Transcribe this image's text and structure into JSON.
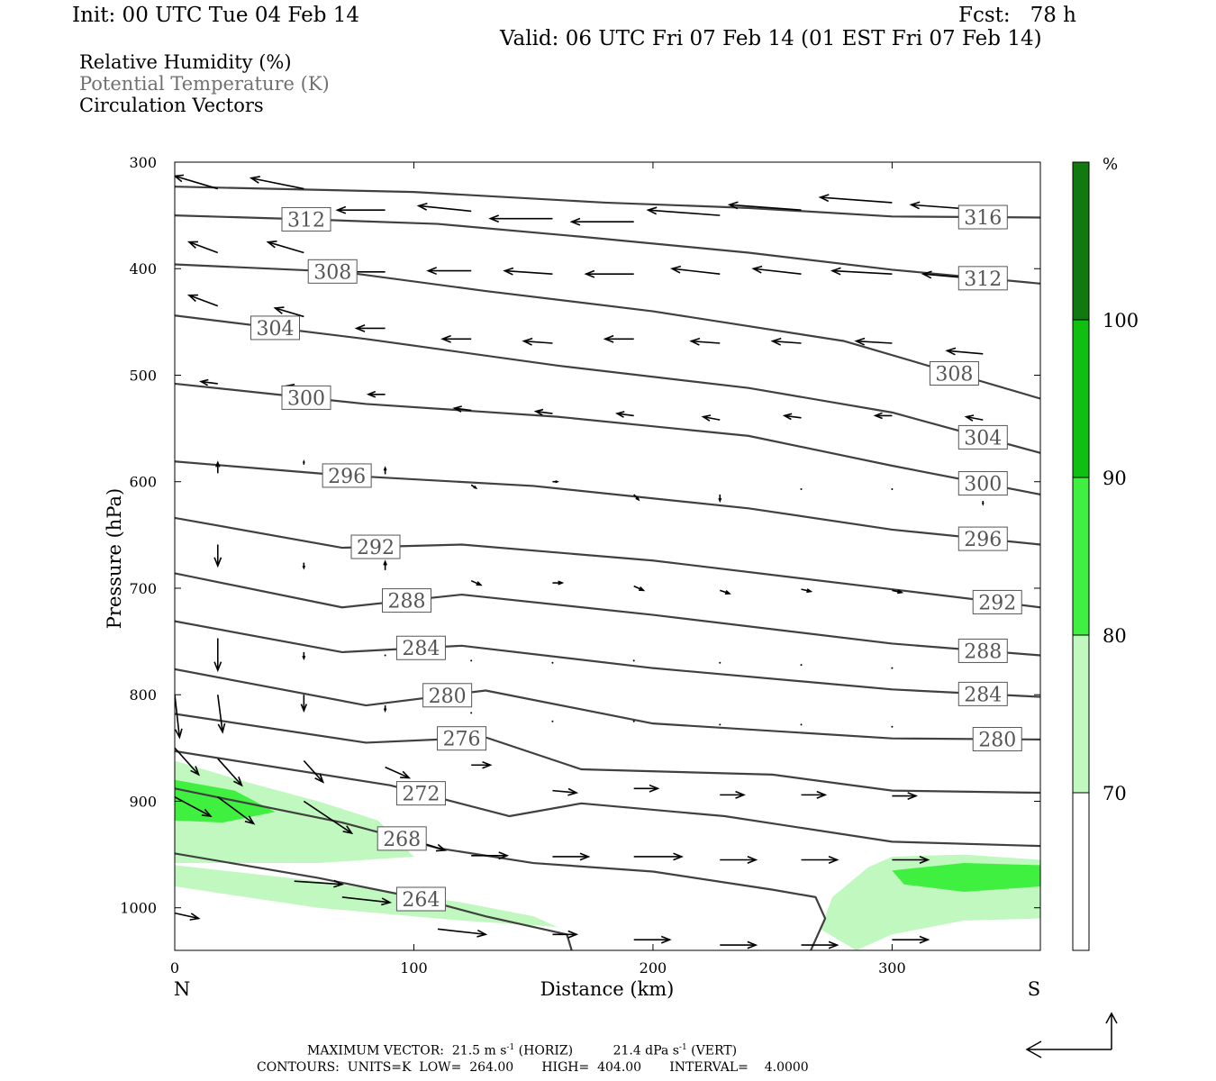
{
  "header": {
    "init": "Init: 00 UTC Tue 04 Feb 14",
    "fcst": "Fcst:   78 h",
    "valid": "Valid: 06 UTC Fri 07 Feb 14 (01 EST Fri 07 Feb 14)"
  },
  "legend": {
    "rh": "Relative Humidity (%)",
    "theta": "Potential Temperature (K)",
    "vectors": "Circulation Vectors"
  },
  "colors": {
    "contour": "#404040",
    "rh70": "#c0f8c0",
    "rh80": "#40f040",
    "rh90": "#10c010",
    "rh100": "#107a10",
    "theta_label_text": "#555555"
  },
  "chart_data": {
    "type": "cross-section",
    "xlabel": "Distance (km)",
    "ylabel": "Pressure (hPa)",
    "xlim": [
      0,
      362
    ],
    "ylim": [
      1040,
      300
    ],
    "x_ticks": [
      0,
      100,
      200,
      300
    ],
    "y_ticks": [
      300,
      400,
      500,
      600,
      700,
      800,
      900,
      1000
    ],
    "end_labels": {
      "left": "N",
      "right": "S"
    },
    "colorbar": {
      "unit": "%",
      "levels": [
        70,
        80,
        90,
        100
      ]
    },
    "isentropes": [
      {
        "theta": 316,
        "points": [
          [
            0,
            323
          ],
          [
            100,
            328
          ],
          [
            180,
            338
          ],
          [
            240,
            343
          ],
          [
            300,
            351
          ],
          [
            362,
            352
          ]
        ],
        "label_x": [
          338
        ]
      },
      {
        "theta": 312,
        "points": [
          [
            0,
            350
          ],
          [
            60,
            354
          ],
          [
            110,
            358
          ],
          [
            170,
            370
          ],
          [
            240,
            385
          ],
          [
            300,
            401
          ],
          [
            362,
            414
          ]
        ],
        "label_x": [
          55,
          338
        ]
      },
      {
        "theta": 308,
        "points": [
          [
            0,
            396
          ],
          [
            70,
            403
          ],
          [
            130,
            421
          ],
          [
            200,
            440
          ],
          [
            280,
            468
          ],
          [
            362,
            522
          ]
        ],
        "label_x": [
          66,
          326
        ]
      },
      {
        "theta": 304,
        "points": [
          [
            0,
            444
          ],
          [
            80,
            466
          ],
          [
            160,
            491
          ],
          [
            240,
            512
          ],
          [
            300,
            535
          ],
          [
            362,
            573
          ]
        ],
        "label_x": [
          42,
          338
        ]
      },
      {
        "theta": 300,
        "points": [
          [
            0,
            508
          ],
          [
            80,
            527
          ],
          [
            160,
            539
          ],
          [
            240,
            557
          ],
          [
            300,
            585
          ],
          [
            362,
            612
          ]
        ],
        "label_x": [
          55,
          338
        ]
      },
      {
        "theta": 296,
        "points": [
          [
            0,
            581
          ],
          [
            70,
            594
          ],
          [
            150,
            604
          ],
          [
            240,
            625
          ],
          [
            300,
            645
          ],
          [
            362,
            659
          ]
        ],
        "label_x": [
          72,
          338
        ]
      },
      {
        "theta": 292,
        "points": [
          [
            0,
            634
          ],
          [
            70,
            662
          ],
          [
            120,
            659
          ],
          [
            200,
            674
          ],
          [
            300,
            701
          ],
          [
            362,
            718
          ]
        ],
        "label_x": [
          84,
          344
        ]
      },
      {
        "theta": 288,
        "points": [
          [
            0,
            686
          ],
          [
            70,
            718
          ],
          [
            120,
            706
          ],
          [
            200,
            725
          ],
          [
            300,
            752
          ],
          [
            362,
            763
          ]
        ],
        "label_x": [
          97,
          338
        ]
      },
      {
        "theta": 284,
        "points": [
          [
            0,
            731
          ],
          [
            70,
            760
          ],
          [
            120,
            754
          ],
          [
            200,
            775
          ],
          [
            300,
            795
          ],
          [
            362,
            802
          ]
        ],
        "label_x": [
          103,
          338
        ]
      },
      {
        "theta": 280,
        "points": [
          [
            0,
            776
          ],
          [
            80,
            810
          ],
          [
            130,
            796
          ],
          [
            200,
            827
          ],
          [
            300,
            841
          ],
          [
            362,
            842
          ]
        ],
        "label_x": [
          114,
          344
        ]
      },
      {
        "theta": 276,
        "points": [
          [
            0,
            818
          ],
          [
            80,
            845
          ],
          [
            130,
            840
          ],
          [
            170,
            870
          ],
          [
            250,
            875
          ],
          [
            300,
            890
          ],
          [
            362,
            892
          ]
        ],
        "label_x": [
          120
        ]
      },
      {
        "theta": 272,
        "points": [
          [
            0,
            853
          ],
          [
            90,
            885
          ],
          [
            140,
            914
          ],
          [
            170,
            902
          ],
          [
            230,
            914
          ],
          [
            300,
            938
          ],
          [
            362,
            942
          ]
        ],
        "label_x": [
          103
        ]
      },
      {
        "theta": 268,
        "points": [
          [
            0,
            888
          ],
          [
            70,
            920
          ],
          [
            110,
            944
          ],
          [
            150,
            958
          ],
          [
            200,
            966
          ],
          [
            250,
            983
          ],
          [
            268,
            990
          ],
          [
            272,
            1010
          ],
          [
            266,
            1040
          ]
        ],
        "label_x": [
          95
        ]
      },
      {
        "theta": 264,
        "points": [
          [
            0,
            949
          ],
          [
            60,
            972
          ],
          [
            100,
            990
          ],
          [
            130,
            1008
          ],
          [
            164,
            1025
          ],
          [
            166,
            1040
          ]
        ],
        "label_x": [
          103
        ]
      }
    ],
    "rh_regions": [
      {
        "min": 70,
        "outline": [
          [
            0,
            862
          ],
          [
            30,
            882
          ],
          [
            60,
            900
          ],
          [
            85,
            918
          ],
          [
            100,
            952
          ],
          [
            60,
            958
          ],
          [
            0,
            958
          ]
        ]
      },
      {
        "min": 70,
        "outline": [
          [
            0,
            960
          ],
          [
            60,
            975
          ],
          [
            120,
            995
          ],
          [
            150,
            1008
          ],
          [
            160,
            1018
          ],
          [
            120,
            1012
          ],
          [
            60,
            1000
          ],
          [
            0,
            980
          ]
        ]
      },
      {
        "min": 70,
        "outline": [
          [
            285,
            1040
          ],
          [
            270,
            1020
          ],
          [
            275,
            990
          ],
          [
            290,
            962
          ],
          [
            300,
            952
          ],
          [
            330,
            950
          ],
          [
            362,
            955
          ],
          [
            362,
            1010
          ],
          [
            330,
            1012
          ],
          [
            300,
            1025
          ]
        ]
      },
      {
        "min": 80,
        "outline": [
          [
            0,
            880
          ],
          [
            25,
            890
          ],
          [
            42,
            910
          ],
          [
            20,
            920
          ],
          [
            0,
            918
          ]
        ]
      },
      {
        "min": 80,
        "outline": [
          [
            300,
            965
          ],
          [
            330,
            958
          ],
          [
            362,
            960
          ],
          [
            362,
            980
          ],
          [
            330,
            985
          ],
          [
            305,
            978
          ]
        ]
      }
    ],
    "vectors": [
      [
        18,
        325,
        -18,
        -12
      ],
      [
        54,
        325,
        -22,
        -10
      ],
      [
        88,
        345,
        -20,
        0
      ],
      [
        124,
        346,
        -22,
        -5
      ],
      [
        158,
        353,
        -26,
        0
      ],
      [
        192,
        356,
        -26,
        0
      ],
      [
        228,
        350,
        -30,
        -5
      ],
      [
        262,
        345,
        -30,
        -5
      ],
      [
        300,
        338,
        -30,
        -5
      ],
      [
        338,
        345,
        -30,
        -5
      ],
      [
        18,
        385,
        -12,
        -10
      ],
      [
        54,
        385,
        -15,
        -10
      ],
      [
        88,
        403,
        -18,
        0
      ],
      [
        124,
        402,
        -18,
        0
      ],
      [
        158,
        405,
        -20,
        -3
      ],
      [
        192,
        405,
        -20,
        0
      ],
      [
        228,
        405,
        -20,
        -5
      ],
      [
        262,
        405,
        -20,
        -5
      ],
      [
        300,
        405,
        -25,
        -3
      ],
      [
        338,
        410,
        -25,
        -5
      ],
      [
        18,
        435,
        -12,
        -10
      ],
      [
        54,
        445,
        -12,
        -8
      ],
      [
        88,
        456,
        -12,
        0
      ],
      [
        124,
        466,
        -12,
        0
      ],
      [
        158,
        470,
        -12,
        -2
      ],
      [
        192,
        466,
        -12,
        0
      ],
      [
        228,
        470,
        -12,
        -2
      ],
      [
        262,
        470,
        -12,
        -2
      ],
      [
        300,
        470,
        -15,
        -2
      ],
      [
        338,
        480,
        -15,
        -3
      ],
      [
        18,
        508,
        -7,
        -2
      ],
      [
        54,
        513,
        -7,
        -3
      ],
      [
        88,
        518,
        -7,
        0
      ],
      [
        124,
        533,
        -7,
        -2
      ],
      [
        158,
        536,
        -7,
        -2
      ],
      [
        192,
        538,
        -7,
        -2
      ],
      [
        228,
        542,
        -7,
        -3
      ],
      [
        262,
        540,
        -7,
        -2
      ],
      [
        300,
        538,
        -7,
        0
      ],
      [
        338,
        542,
        -7,
        -3
      ],
      [
        18,
        592,
        0,
        -10
      ],
      [
        54,
        584,
        0,
        -3
      ],
      [
        88,
        593,
        0,
        -6
      ],
      [
        124,
        603,
        2,
        3
      ],
      [
        158,
        600,
        2,
        0
      ],
      [
        192,
        612,
        2,
        5
      ],
      [
        228,
        612,
        0,
        6
      ],
      [
        262,
        607,
        0,
        2
      ],
      [
        300,
        607,
        0,
        2
      ],
      [
        338,
        618,
        0,
        3
      ],
      [
        18,
        659,
        0,
        20
      ],
      [
        54,
        676,
        0,
        5
      ],
      [
        88,
        683,
        0,
        -8
      ],
      [
        124,
        693,
        4,
        4
      ],
      [
        158,
        695,
        4,
        0
      ],
      [
        192,
        698,
        4,
        4
      ],
      [
        228,
        702,
        4,
        3
      ],
      [
        262,
        701,
        4,
        2
      ],
      [
        300,
        702,
        4,
        2
      ],
      [
        18,
        747,
        0,
        30
      ],
      [
        54,
        760,
        0,
        6
      ],
      [
        88,
        763,
        0,
        0
      ],
      [
        124,
        768,
        0,
        0
      ],
      [
        158,
        770,
        0,
        0
      ],
      [
        192,
        768,
        0,
        0
      ],
      [
        228,
        770,
        0,
        0
      ],
      [
        262,
        772,
        0,
        0
      ],
      [
        300,
        775,
        0,
        0
      ],
      [
        0,
        800,
        2,
        40
      ],
      [
        18,
        800,
        2,
        35
      ],
      [
        54,
        800,
        0,
        15
      ],
      [
        88,
        810,
        0,
        5
      ],
      [
        124,
        817,
        0,
        0
      ],
      [
        158,
        825,
        0,
        0
      ],
      [
        192,
        825,
        0,
        0
      ],
      [
        228,
        828,
        0,
        0
      ],
      [
        262,
        828,
        0,
        0
      ],
      [
        300,
        830,
        0,
        0
      ],
      [
        0,
        850,
        10,
        25
      ],
      [
        18,
        860,
        10,
        25
      ],
      [
        54,
        862,
        8,
        20
      ],
      [
        88,
        868,
        10,
        10
      ],
      [
        124,
        866,
        8,
        0
      ],
      [
        158,
        890,
        10,
        2
      ],
      [
        192,
        888,
        10,
        0
      ],
      [
        228,
        894,
        10,
        0
      ],
      [
        262,
        894,
        10,
        0
      ],
      [
        300,
        895,
        10,
        0
      ],
      [
        0,
        896,
        15,
        18
      ],
      [
        18,
        896,
        15,
        25
      ],
      [
        54,
        900,
        20,
        30
      ],
      [
        88,
        928,
        25,
        18
      ],
      [
        124,
        951,
        15,
        0
      ],
      [
        158,
        952,
        15,
        0
      ],
      [
        192,
        952,
        20,
        0
      ],
      [
        228,
        955,
        15,
        0
      ],
      [
        262,
        955,
        15,
        0
      ],
      [
        300,
        955,
        15,
        0
      ],
      [
        0,
        1005,
        10,
        5
      ],
      [
        50,
        975,
        20,
        3
      ],
      [
        70,
        990,
        20,
        5
      ],
      [
        110,
        1020,
        20,
        5
      ],
      [
        158,
        1025,
        10,
        0
      ],
      [
        192,
        1030,
        15,
        0
      ],
      [
        228,
        1035,
        15,
        0
      ],
      [
        262,
        1035,
        15,
        0
      ],
      [
        300,
        1030,
        15,
        0
      ]
    ],
    "footer": {
      "max_vector_line": "MAXIMUM VECTOR:  21.5 m s",
      "max_vector_sup1": "-1",
      "max_vector_mid": " (HORIZ)          21.4 dPa s",
      "max_vector_sup2": "-1",
      "max_vector_end": " (VERT)",
      "contours_line": "CONTOURS:  UNITS=K  LOW=  264.00       HIGH=  404.00       INTERVAL=    4.0000"
    }
  }
}
